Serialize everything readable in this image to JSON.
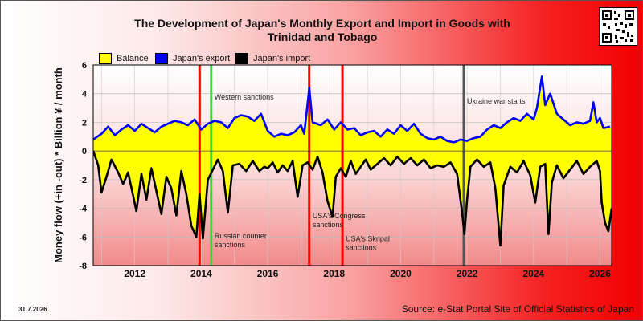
{
  "chart_data": {
    "type": "area",
    "title_line1": "The Development of Japan's Monthly Export and Import in Goods with",
    "title_line2": "Trinidad and Tobago",
    "ylabel": "Money flow (+in -out) * Billion ¥ / month",
    "xlabel": "",
    "ylim": [
      -8,
      6
    ],
    "xlim": [
      2010.75,
      2026.35
    ],
    "yticks": [
      6,
      4,
      2,
      0,
      -2,
      -4,
      -6,
      -8
    ],
    "xticks": [
      2012,
      2014,
      2016,
      2018,
      2020,
      2022,
      2024,
      2026
    ],
    "grid": true,
    "legend_position": "top-left",
    "series": [
      {
        "name": "Balance",
        "color": "#ffff00"
      },
      {
        "name": "Japan's export",
        "color": "#0000ff"
      },
      {
        "name": "Japan's import",
        "color": "#000000"
      }
    ],
    "export_points": [
      [
        2010.75,
        0.8
      ],
      [
        2011.0,
        1.2
      ],
      [
        2011.2,
        1.7
      ],
      [
        2011.4,
        1.1
      ],
      [
        2011.6,
        1.5
      ],
      [
        2011.8,
        1.8
      ],
      [
        2012.0,
        1.4
      ],
      [
        2012.2,
        1.9
      ],
      [
        2012.4,
        1.6
      ],
      [
        2012.6,
        1.3
      ],
      [
        2012.8,
        1.7
      ],
      [
        2013.0,
        1.9
      ],
      [
        2013.2,
        2.1
      ],
      [
        2013.4,
        2.0
      ],
      [
        2013.6,
        1.8
      ],
      [
        2013.8,
        2.2
      ],
      [
        2014.0,
        1.5
      ],
      [
        2014.2,
        1.9
      ],
      [
        2014.4,
        2.1
      ],
      [
        2014.6,
        2.0
      ],
      [
        2014.8,
        1.6
      ],
      [
        2015.0,
        2.3
      ],
      [
        2015.2,
        2.5
      ],
      [
        2015.4,
        2.4
      ],
      [
        2015.6,
        2.1
      ],
      [
        2015.8,
        2.6
      ],
      [
        2016.0,
        1.4
      ],
      [
        2016.2,
        1.0
      ],
      [
        2016.4,
        1.2
      ],
      [
        2016.6,
        1.1
      ],
      [
        2016.8,
        1.3
      ],
      [
        2017.0,
        1.8
      ],
      [
        2017.1,
        1.2
      ],
      [
        2017.25,
        4.4
      ],
      [
        2017.35,
        2.0
      ],
      [
        2017.6,
        1.8
      ],
      [
        2017.8,
        2.2
      ],
      [
        2018.0,
        1.5
      ],
      [
        2018.2,
        2.0
      ],
      [
        2018.4,
        1.5
      ],
      [
        2018.6,
        1.6
      ],
      [
        2018.8,
        1.1
      ],
      [
        2019.0,
        1.3
      ],
      [
        2019.2,
        1.4
      ],
      [
        2019.4,
        1.0
      ],
      [
        2019.6,
        1.5
      ],
      [
        2019.8,
        1.2
      ],
      [
        2020.0,
        1.8
      ],
      [
        2020.2,
        1.4
      ],
      [
        2020.4,
        1.9
      ],
      [
        2020.6,
        1.2
      ],
      [
        2020.8,
        0.9
      ],
      [
        2021.0,
        0.8
      ],
      [
        2021.2,
        1.0
      ],
      [
        2021.4,
        0.7
      ],
      [
        2021.6,
        0.6
      ],
      [
        2021.8,
        0.8
      ],
      [
        2022.0,
        0.7
      ],
      [
        2022.2,
        0.9
      ],
      [
        2022.4,
        1.0
      ],
      [
        2022.6,
        1.5
      ],
      [
        2022.8,
        1.8
      ],
      [
        2023.0,
        1.6
      ],
      [
        2023.2,
        2.0
      ],
      [
        2023.4,
        2.3
      ],
      [
        2023.6,
        2.1
      ],
      [
        2023.8,
        2.6
      ],
      [
        2024.0,
        2.2
      ],
      [
        2024.1,
        3.0
      ],
      [
        2024.25,
        5.2
      ],
      [
        2024.35,
        3.2
      ],
      [
        2024.5,
        4.0
      ],
      [
        2024.7,
        2.6
      ],
      [
        2024.9,
        2.2
      ],
      [
        2025.1,
        1.8
      ],
      [
        2025.3,
        2.0
      ],
      [
        2025.5,
        1.9
      ],
      [
        2025.7,
        2.1
      ],
      [
        2025.8,
        3.4
      ],
      [
        2025.9,
        2.0
      ],
      [
        2026.0,
        2.3
      ],
      [
        2026.1,
        1.6
      ],
      [
        2026.3,
        1.7
      ]
    ],
    "import_points": [
      [
        2010.75,
        0.0
      ],
      [
        2010.9,
        -1.0
      ],
      [
        2011.0,
        -2.9
      ],
      [
        2011.15,
        -1.8
      ],
      [
        2011.3,
        -0.6
      ],
      [
        2011.5,
        -1.5
      ],
      [
        2011.65,
        -2.3
      ],
      [
        2011.8,
        -1.5
      ],
      [
        2011.95,
        -3.1
      ],
      [
        2012.05,
        -4.2
      ],
      [
        2012.2,
        -1.6
      ],
      [
        2012.35,
        -3.4
      ],
      [
        2012.5,
        -1.2
      ],
      [
        2012.65,
        -2.8
      ],
      [
        2012.8,
        -4.4
      ],
      [
        2012.95,
        -1.8
      ],
      [
        2013.1,
        -2.6
      ],
      [
        2013.25,
        -4.5
      ],
      [
        2013.4,
        -1.4
      ],
      [
        2013.55,
        -3.0
      ],
      [
        2013.7,
        -5.2
      ],
      [
        2013.85,
        -6.0
      ],
      [
        2013.95,
        -3.0
      ],
      [
        2014.05,
        -6.1
      ],
      [
        2014.2,
        -2.0
      ],
      [
        2014.35,
        -1.3
      ],
      [
        2014.5,
        -0.6
      ],
      [
        2014.65,
        -1.4
      ],
      [
        2014.8,
        -4.3
      ],
      [
        2014.95,
        -1.0
      ],
      [
        2015.15,
        -0.9
      ],
      [
        2015.35,
        -1.4
      ],
      [
        2015.55,
        -0.7
      ],
      [
        2015.75,
        -1.4
      ],
      [
        2015.9,
        -1.1
      ],
      [
        2016.0,
        -1.2
      ],
      [
        2016.15,
        -0.8
      ],
      [
        2016.3,
        -1.5
      ],
      [
        2016.45,
        -1.0
      ],
      [
        2016.6,
        -1.4
      ],
      [
        2016.75,
        -0.7
      ],
      [
        2016.9,
        -3.2
      ],
      [
        2017.05,
        -1.0
      ],
      [
        2017.2,
        -0.8
      ],
      [
        2017.35,
        -1.3
      ],
      [
        2017.5,
        -0.4
      ],
      [
        2017.65,
        -1.5
      ],
      [
        2017.8,
        -3.5
      ],
      [
        2017.95,
        -4.6
      ],
      [
        2018.05,
        -1.8
      ],
      [
        2018.2,
        -1.2
      ],
      [
        2018.35,
        -1.8
      ],
      [
        2018.5,
        -0.7
      ],
      [
        2018.65,
        -1.6
      ],
      [
        2018.8,
        -1.1
      ],
      [
        2018.95,
        -0.6
      ],
      [
        2019.1,
        -1.3
      ],
      [
        2019.3,
        -0.9
      ],
      [
        2019.5,
        -0.5
      ],
      [
        2019.7,
        -1.0
      ],
      [
        2019.9,
        -0.4
      ],
      [
        2020.1,
        -0.9
      ],
      [
        2020.3,
        -0.5
      ],
      [
        2020.5,
        -1.0
      ],
      [
        2020.7,
        -0.6
      ],
      [
        2020.9,
        -1.2
      ],
      [
        2021.1,
        -1.0
      ],
      [
        2021.3,
        -1.1
      ],
      [
        2021.5,
        -0.8
      ],
      [
        2021.7,
        -1.6
      ],
      [
        2021.85,
        -4.3
      ],
      [
        2021.92,
        -5.8
      ],
      [
        2022.0,
        -3.4
      ],
      [
        2022.1,
        -1.1
      ],
      [
        2022.3,
        -0.6
      ],
      [
        2022.5,
        -1.1
      ],
      [
        2022.7,
        -0.8
      ],
      [
        2022.85,
        -2.6
      ],
      [
        2023.0,
        -6.6
      ],
      [
        2023.1,
        -2.4
      ],
      [
        2023.3,
        -1.1
      ],
      [
        2023.5,
        -1.5
      ],
      [
        2023.7,
        -0.7
      ],
      [
        2023.9,
        -1.7
      ],
      [
        2024.05,
        -3.6
      ],
      [
        2024.2,
        -1.1
      ],
      [
        2024.35,
        -0.9
      ],
      [
        2024.45,
        -5.8
      ],
      [
        2024.55,
        -2.2
      ],
      [
        2024.7,
        -1.0
      ],
      [
        2024.9,
        -1.9
      ],
      [
        2025.1,
        -1.3
      ],
      [
        2025.3,
        -0.7
      ],
      [
        2025.5,
        -1.6
      ],
      [
        2025.7,
        -1.1
      ],
      [
        2025.9,
        -0.7
      ],
      [
        2026.0,
        -1.4
      ],
      [
        2026.05,
        -3.6
      ],
      [
        2026.15,
        -5.0
      ],
      [
        2026.25,
        -5.6
      ],
      [
        2026.35,
        -4.0
      ]
    ],
    "events": [
      {
        "x": 2013.95,
        "color": "#ff0000",
        "label": ""
      },
      {
        "x": 2014.3,
        "color": "#33dd33",
        "label": "Western sanctions",
        "label_y": 3.6
      },
      {
        "x": 2017.25,
        "color": "#ff0000",
        "label": "",
        "label_y": null
      },
      {
        "x": 2018.25,
        "color": "#ff0000",
        "label": ""
      },
      {
        "x": 2021.9,
        "color": "#555555",
        "label": "Ukraine war starts",
        "label_y": 3.3
      }
    ],
    "annotations": [
      {
        "x": 2014.35,
        "y": -6.1,
        "text": "Russian counter sanctions"
      },
      {
        "x": 2017.3,
        "y": -4.7,
        "text": "USA's Congress sanctions"
      },
      {
        "x": 2018.3,
        "y": -6.3,
        "text": "USA's Skripal sanctions"
      }
    ],
    "source": "Source: e-Stat Portal Site of Official Statistics of Japan",
    "date_stamp": "31.7.2026"
  }
}
